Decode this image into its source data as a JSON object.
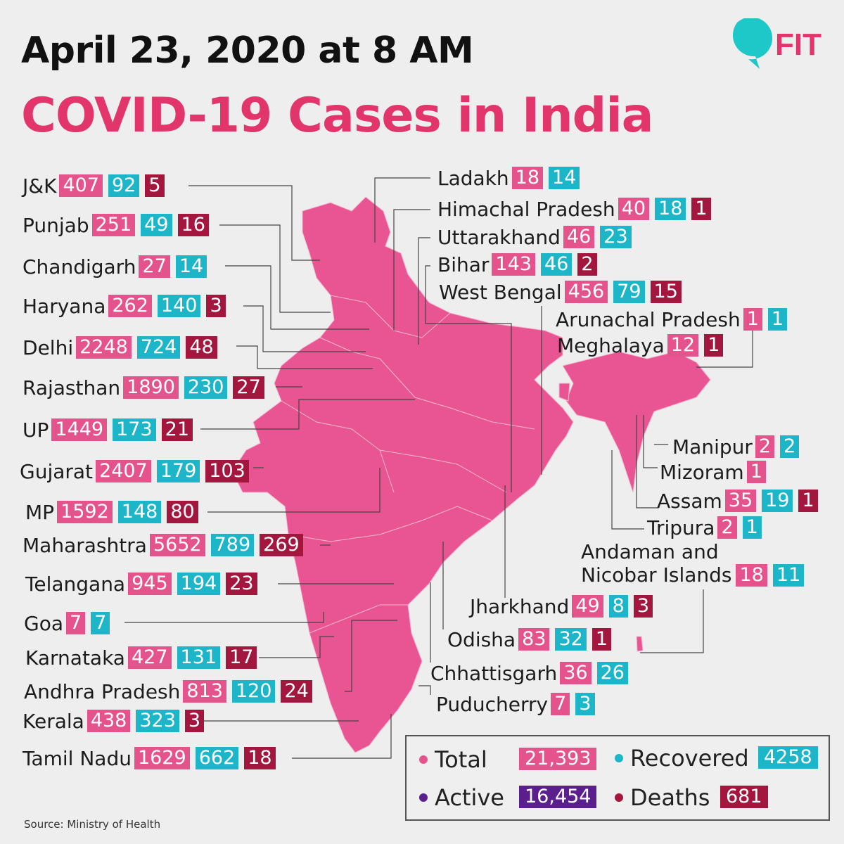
{
  "header": {
    "date": "April 23, 2020 at 8 AM",
    "title": "COVID-19 Cases in India"
  },
  "logo": {
    "text": "FIT",
    "color": "#e2356b",
    "accent": "#1ec8c8"
  },
  "colors": {
    "total": "#e4538c",
    "recovered": "#1db6c9",
    "deaths": "#a3173f",
    "active": "#5a1f8c",
    "map": "#e85592"
  },
  "left_states": [
    {
      "name": "J&K",
      "total": "407",
      "recovered": "92",
      "deaths": "5"
    },
    {
      "name": "Punjab",
      "total": "251",
      "recovered": "49",
      "deaths": "16"
    },
    {
      "name": "Chandigarh",
      "total": "27",
      "recovered": "14",
      "deaths": ""
    },
    {
      "name": "Haryana",
      "total": "262",
      "recovered": "140",
      "deaths": "3"
    },
    {
      "name": "Delhi",
      "total": "2248",
      "recovered": "724",
      "deaths": "48"
    },
    {
      "name": "Rajasthan",
      "total": "1890",
      "recovered": "230",
      "deaths": "27"
    },
    {
      "name": "UP",
      "total": "1449",
      "recovered": "173",
      "deaths": "21"
    },
    {
      "name": "Gujarat",
      "total": "2407",
      "recovered": "179",
      "deaths": "103"
    },
    {
      "name": "MP",
      "total": "1592",
      "recovered": "148",
      "deaths": "80"
    },
    {
      "name": "Maharashtra",
      "total": "5652",
      "recovered": "789",
      "deaths": "269"
    },
    {
      "name": "Telangana",
      "total": "945",
      "recovered": "194",
      "deaths": "23"
    },
    {
      "name": "Goa",
      "total": "7",
      "recovered": "7",
      "deaths": ""
    },
    {
      "name": "Karnataka",
      "total": "427",
      "recovered": "131",
      "deaths": "17"
    },
    {
      "name": "Andhra Pradesh",
      "total": "813",
      "recovered": "120",
      "deaths": "24"
    },
    {
      "name": "Kerala",
      "total": "438",
      "recovered": "323",
      "deaths": "3"
    },
    {
      "name": "Tamil Nadu",
      "total": "1629",
      "recovered": "662",
      "deaths": "18"
    }
  ],
  "right_states": [
    {
      "name": "Ladakh",
      "total": "18",
      "recovered": "14",
      "deaths": ""
    },
    {
      "name": "Himachal Pradesh",
      "total": "40",
      "recovered": "18",
      "deaths": "1"
    },
    {
      "name": "Uttarakhand",
      "total": "46",
      "recovered": "23",
      "deaths": ""
    },
    {
      "name": "Bihar",
      "total": "143",
      "recovered": "46",
      "deaths": "2"
    },
    {
      "name": "West Bengal",
      "total": "456",
      "recovered": "79",
      "deaths": "15"
    },
    {
      "name": "Arunachal Pradesh",
      "total": "1",
      "recovered": "1",
      "deaths": ""
    },
    {
      "name": "Meghalaya",
      "total": "12",
      "recovered": "",
      "deaths": "1"
    },
    {
      "name": "Manipur",
      "total": "2",
      "recovered": "2",
      "deaths": ""
    },
    {
      "name": "Mizoram",
      "total": "1",
      "recovered": "",
      "deaths": ""
    },
    {
      "name": "Assam",
      "total": "35",
      "recovered": "19",
      "deaths": "1"
    },
    {
      "name": "Tripura",
      "total": "2",
      "recovered": "1",
      "deaths": ""
    },
    {
      "name": "Andaman and Nicobar Islands",
      "line1": "Andaman and",
      "line2": "Nicobar Islands",
      "total": "18",
      "recovered": "11",
      "deaths": ""
    },
    {
      "name": "Jharkhand",
      "total": "49",
      "recovered": "8",
      "deaths": "3"
    },
    {
      "name": "Odisha",
      "total": "83",
      "recovered": "32",
      "deaths": "1"
    },
    {
      "name": "Chhattisgarh",
      "total": "36",
      "recovered": "26",
      "deaths": ""
    },
    {
      "name": "Puducherry",
      "total": "7",
      "recovered": "3",
      "deaths": ""
    }
  ],
  "legend": {
    "total_label": "Total",
    "total_value": "21,393",
    "recovered_label": "Recovered",
    "recovered_value": "4258",
    "active_label": "Active",
    "active_value": "16,454",
    "deaths_label": "Deaths",
    "deaths_value": "681"
  },
  "source": "Source: Ministry of Health"
}
